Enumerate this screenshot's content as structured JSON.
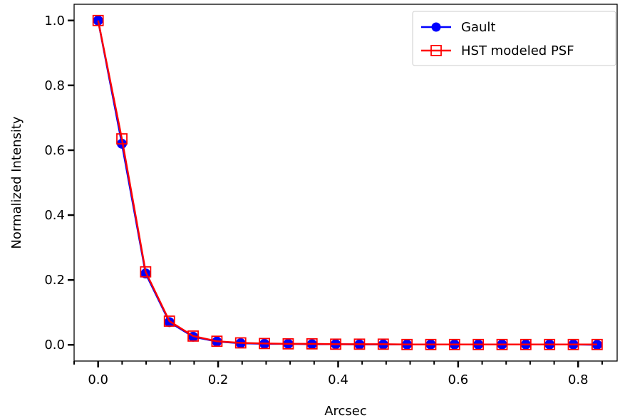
{
  "chart_data": {
    "type": "line",
    "title": "",
    "xlabel": "Arcsec",
    "ylabel": "Normalized Intensity",
    "xlim": [
      -0.04,
      0.865
    ],
    "ylim": [
      -0.05,
      1.05
    ],
    "xticks": [
      0.0,
      0.2,
      0.4,
      0.6,
      0.8
    ],
    "xtick_labels": [
      "0.0",
      "0.2",
      "0.4",
      "0.6",
      "0.8"
    ],
    "yticks": [
      0.0,
      0.2,
      0.4,
      0.6,
      0.8,
      1.0
    ],
    "ytick_labels": [
      "0.0",
      "0.2",
      "0.4",
      "0.6",
      "0.8",
      "1.0"
    ],
    "grid": false,
    "legend_position": "top-right",
    "x": [
      0.0,
      0.0396,
      0.0792,
      0.1188,
      0.1584,
      0.198,
      0.2376,
      0.2772,
      0.3168,
      0.3564,
      0.396,
      0.4356,
      0.4752,
      0.5148,
      0.5544,
      0.594,
      0.6336,
      0.6732,
      0.7128,
      0.7524,
      0.792,
      0.8316
    ],
    "series": [
      {
        "name": "Gault",
        "color": "#0000ff",
        "marker": "circle",
        "values": [
          1.0,
          0.62,
          0.22,
          0.07,
          0.025,
          0.01,
          0.005,
          0.003,
          0.003,
          0.002,
          0.002,
          0.001,
          0.001,
          0.001,
          0.001,
          0.001,
          0.001,
          0.001,
          0.001,
          0.001,
          0.001,
          0.0
        ]
      },
      {
        "name": "HST modeled PSF",
        "color": "#ff0000",
        "marker": "square",
        "values": [
          1.0,
          0.635,
          0.225,
          0.073,
          0.027,
          0.011,
          0.006,
          0.004,
          0.003,
          0.003,
          0.002,
          0.002,
          0.002,
          0.001,
          0.001,
          0.001,
          0.001,
          0.001,
          0.001,
          0.001,
          0.001,
          0.001
        ]
      }
    ]
  }
}
